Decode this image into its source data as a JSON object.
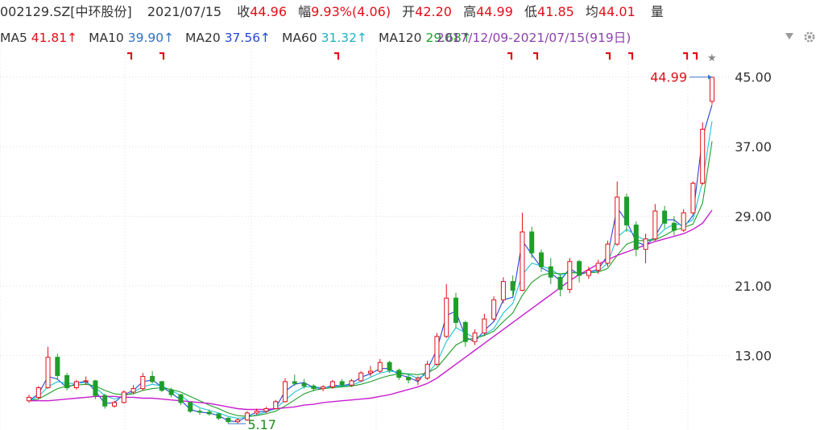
{
  "header": {
    "symbol": "002129.SZ[中环股份]",
    "date": "2021/07/15",
    "close_label": "收",
    "close": "44.96",
    "change_label": "幅",
    "change": "9.93%(4.06)",
    "open_label": "开",
    "open": "42.20",
    "high_label": "高",
    "high": "44.99",
    "low_label": "低",
    "low": "41.85",
    "avg_label": "均",
    "avg": "44.01",
    "vol_label": "量"
  },
  "ma_bar": {
    "ma5_label": "MA5",
    "ma5": "41.81↑",
    "ma10_label": "MA10",
    "ma10": "39.90↑",
    "ma20_label": "MA20",
    "ma20": "37.56↑",
    "ma60_label": "MA60",
    "ma60": "31.32↑",
    "ma120_label": "MA120",
    "ma120": "29.68↑",
    "overlap_text": "2017/12/09-2021/07/15(919日)"
  },
  "colors": {
    "candle_up": "#e0101a",
    "candle_down": "#1f9e2a",
    "ma5": "#2447d6",
    "ma10": "#1fc2d6",
    "ma20": "#1f9e2a",
    "ma120": "#c81fd0",
    "axis_text": "#333333",
    "grid": "#dddddd",
    "high_label": "#d8141c",
    "low_label": "#1f8a1f"
  },
  "icons": {
    "ma_expand": "triangle-down-icon",
    "settings": "gear-icon",
    "favorite": "star-icon"
  },
  "chart_data": {
    "type": "candlestick",
    "period": {
      "start": "2017/12/09",
      "end": "2021/07/15",
      "trading_days": 919
    },
    "ylim": [
      5,
      47
    ],
    "y_ticks": [
      "45.00",
      "37.00",
      "29.00",
      "21.00",
      "13.00"
    ],
    "y_tick_values": [
      45,
      37,
      29,
      21,
      13
    ],
    "annotations": {
      "period_high": "44.99",
      "period_low": "5.17"
    },
    "series": [
      {
        "name": "MA5",
        "values": [
          7.8,
          8.6,
          10.6,
          10.3,
          9.3,
          9.8,
          10.1,
          8.9,
          7.5,
          7.6,
          8.5,
          9.0,
          10.0,
          10.2,
          9.4,
          8.7,
          7.9,
          6.8,
          6.5,
          6.4,
          6.1,
          5.5,
          5.4,
          6.0,
          6.5,
          6.6,
          7.0,
          8.9,
          9.7,
          9.9,
          9.3,
          9.2,
          9.6,
          9.5,
          9.8,
          10.5,
          10.9,
          11.5,
          11.5,
          10.8,
          10.5,
          10.0,
          11.4,
          13.7,
          17.6,
          18.1,
          15.1,
          14.6,
          15.9,
          16.9,
          19.4,
          19.7,
          26.2,
          24.6,
          23.1,
          22.5,
          21.6,
          23.0,
          22.3,
          22.6,
          22.9,
          24.5,
          30.0,
          28.4,
          26.1,
          25.6,
          26.7,
          28.6,
          28.6,
          27.7,
          29.1,
          38.1,
          41.8
        ]
      },
      {
        "name": "MA10",
        "values": [
          7.8,
          8.3,
          9.4,
          10.0,
          9.8,
          9.8,
          9.9,
          9.3,
          8.4,
          8.0,
          8.3,
          8.8,
          9.4,
          9.7,
          9.5,
          9.0,
          8.4,
          7.6,
          7.0,
          6.7,
          6.4,
          6.0,
          5.8,
          5.9,
          6.2,
          6.5,
          6.9,
          7.9,
          8.8,
          9.4,
          9.4,
          9.3,
          9.4,
          9.5,
          9.6,
          10.0,
          10.5,
          11.0,
          11.2,
          11.1,
          10.8,
          10.4,
          10.9,
          12.2,
          14.6,
          16.2,
          15.6,
          15.0,
          15.4,
          16.1,
          17.9,
          19.0,
          22.3,
          23.6,
          23.3,
          22.9,
          22.2,
          22.6,
          22.5,
          22.5,
          22.7,
          23.6,
          26.6,
          27.5,
          26.8,
          26.2,
          26.5,
          27.5,
          28.1,
          28.0,
          28.6,
          33.0,
          39.9
        ]
      },
      {
        "name": "MA20",
        "values": [
          7.8,
          8.0,
          8.6,
          9.2,
          9.5,
          9.6,
          9.7,
          9.5,
          9.0,
          8.6,
          8.5,
          8.6,
          9.0,
          9.2,
          9.3,
          9.1,
          8.8,
          8.3,
          7.8,
          7.3,
          6.9,
          6.4,
          6.1,
          6.0,
          6.1,
          6.3,
          6.6,
          7.2,
          7.9,
          8.6,
          9.0,
          9.2,
          9.3,
          9.4,
          9.5,
          9.7,
          10.0,
          10.4,
          10.7,
          10.9,
          10.9,
          10.8,
          11.0,
          11.6,
          12.9,
          14.2,
          14.8,
          15.0,
          15.3,
          15.8,
          16.9,
          17.9,
          19.9,
          21.4,
          22.2,
          22.5,
          22.4,
          22.5,
          22.5,
          22.5,
          22.6,
          23.0,
          24.5,
          25.8,
          26.2,
          26.2,
          26.3,
          26.8,
          27.4,
          27.7,
          28.1,
          30.5,
          37.6
        ]
      },
      {
        "name": "MA120",
        "values": [
          7.8,
          7.8,
          7.8,
          7.9,
          8.0,
          8.1,
          8.2,
          8.3,
          8.3,
          8.3,
          8.2,
          8.2,
          8.1,
          8.1,
          8.0,
          7.9,
          7.8,
          7.7,
          7.6,
          7.5,
          7.3,
          7.1,
          6.9,
          6.8,
          6.8,
          6.8,
          6.9,
          7.0,
          7.1,
          7.3,
          7.4,
          7.6,
          7.7,
          7.8,
          7.9,
          8.0,
          8.1,
          8.3,
          8.5,
          8.8,
          9.1,
          9.4,
          9.8,
          10.4,
          11.2,
          12.0,
          12.8,
          13.6,
          14.4,
          15.2,
          16.0,
          16.8,
          17.6,
          18.4,
          19.2,
          20.0,
          20.8,
          21.6,
          22.3,
          22.9,
          23.5,
          24.0,
          24.5,
          24.9,
          25.3,
          25.7,
          26.1,
          26.4,
          26.7,
          27.0,
          27.5,
          28.2,
          29.7
        ]
      }
    ],
    "candles_ohlc": [
      [
        7.8,
        8.5,
        7.6,
        8.2
      ],
      [
        8.2,
        9.5,
        8.0,
        9.3
      ],
      [
        9.3,
        14.0,
        9.2,
        12.8
      ],
      [
        12.8,
        13.2,
        10.2,
        10.7
      ],
      [
        10.7,
        11.0,
        9.0,
        9.3
      ],
      [
        9.3,
        10.2,
        9.1,
        10.0
      ],
      [
        10.0,
        10.6,
        9.6,
        10.1
      ],
      [
        10.1,
        10.2,
        8.0,
        8.4
      ],
      [
        8.4,
        8.6,
        6.9,
        7.2
      ],
      [
        7.2,
        7.8,
        7.0,
        7.6
      ],
      [
        7.6,
        9.0,
        7.5,
        8.8
      ],
      [
        8.8,
        9.6,
        8.6,
        9.2
      ],
      [
        9.2,
        11.0,
        9.0,
        10.6
      ],
      [
        10.6,
        11.2,
        9.8,
        10.0
      ],
      [
        10.0,
        10.1,
        8.8,
        9.0
      ],
      [
        9.0,
        9.3,
        8.2,
        8.5
      ],
      [
        8.5,
        8.6,
        7.3,
        7.6
      ],
      [
        7.6,
        7.7,
        6.4,
        6.6
      ],
      [
        6.6,
        6.9,
        6.2,
        6.5
      ],
      [
        6.5,
        6.8,
        6.1,
        6.3
      ],
      [
        6.3,
        6.4,
        5.6,
        5.8
      ],
      [
        5.8,
        5.9,
        5.17,
        5.4
      ],
      [
        5.4,
        5.8,
        5.2,
        5.6
      ],
      [
        5.6,
        6.6,
        5.5,
        6.4
      ],
      [
        6.4,
        6.9,
        6.2,
        6.6
      ],
      [
        6.6,
        7.1,
        6.4,
        6.9
      ],
      [
        6.9,
        7.9,
        6.8,
        7.7
      ],
      [
        7.7,
        10.4,
        7.6,
        10.0
      ],
      [
        10.0,
        10.8,
        9.5,
        9.8
      ],
      [
        9.8,
        10.3,
        9.2,
        9.5
      ],
      [
        9.5,
        9.7,
        8.9,
        9.2
      ],
      [
        9.2,
        9.6,
        8.9,
        9.4
      ],
      [
        9.4,
        10.2,
        9.2,
        10.0
      ],
      [
        10.0,
        10.3,
        9.4,
        9.6
      ],
      [
        9.6,
        10.3,
        9.4,
        10.1
      ],
      [
        10.1,
        11.2,
        10.0,
        11.0
      ],
      [
        11.0,
        11.8,
        10.6,
        11.2
      ],
      [
        11.2,
        12.6,
        11.0,
        12.2
      ],
      [
        12.2,
        12.4,
        11.0,
        11.3
      ],
      [
        11.3,
        11.5,
        10.2,
        10.5
      ],
      [
        10.5,
        10.8,
        9.8,
        10.2
      ],
      [
        10.2,
        10.6,
        9.6,
        10.4
      ],
      [
        10.4,
        12.4,
        10.2,
        12.0
      ],
      [
        12.0,
        15.6,
        11.8,
        15.2
      ],
      [
        15.2,
        21.2,
        15.0,
        19.6
      ],
      [
        19.6,
        20.2,
        16.2,
        16.8
      ],
      [
        16.8,
        17.0,
        14.0,
        14.6
      ],
      [
        14.6,
        16.0,
        14.2,
        15.6
      ],
      [
        15.6,
        17.8,
        15.4,
        17.2
      ],
      [
        17.2,
        19.8,
        17.0,
        19.4
      ],
      [
        19.4,
        22.0,
        19.0,
        21.5
      ],
      [
        21.5,
        22.2,
        19.8,
        20.5
      ],
      [
        20.5,
        29.4,
        20.4,
        27.2
      ],
      [
        27.2,
        27.8,
        24.2,
        24.8
      ],
      [
        24.8,
        25.2,
        22.6,
        23.2
      ],
      [
        23.2,
        24.2,
        21.2,
        22.0
      ],
      [
        22.0,
        22.4,
        19.8,
        20.6
      ],
      [
        20.6,
        24.2,
        20.2,
        23.8
      ],
      [
        23.8,
        24.0,
        21.4,
        22.2
      ],
      [
        22.2,
        23.2,
        21.8,
        22.8
      ],
      [
        22.8,
        24.0,
        22.4,
        23.6
      ],
      [
        23.6,
        26.2,
        23.2,
        25.8
      ],
      [
        25.8,
        33.0,
        25.6,
        31.2
      ],
      [
        31.2,
        31.6,
        27.2,
        28.0
      ],
      [
        28.0,
        28.4,
        24.4,
        25.2
      ],
      [
        25.2,
        27.0,
        23.6,
        26.4
      ],
      [
        26.4,
        30.4,
        26.2,
        29.6
      ],
      [
        29.6,
        30.2,
        27.6,
        28.2
      ],
      [
        28.2,
        29.0,
        26.8,
        27.4
      ],
      [
        27.4,
        29.8,
        27.2,
        29.4
      ],
      [
        29.4,
        33.0,
        29.2,
        32.8
      ],
      [
        32.8,
        39.8,
        32.6,
        39.0
      ],
      [
        42.2,
        44.99,
        41.85,
        44.96
      ]
    ]
  }
}
